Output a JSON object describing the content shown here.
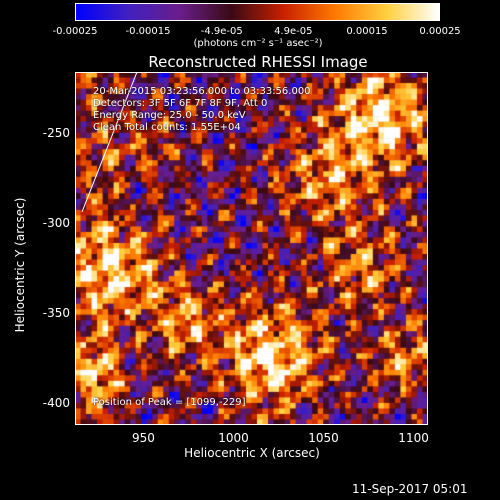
{
  "colorbar": {
    "tick_labels": [
      "-0.00025",
      "-0.00015",
      "-4.9e-05",
      "4.9e-05",
      "0.00015",
      "0.00025"
    ],
    "tick_values": [
      -0.00025,
      -0.00015,
      -4.9e-05,
      4.9e-05,
      0.00015,
      0.00025
    ],
    "range": [
      -0.00025,
      0.00025
    ],
    "units": "(photons cm⁻² s⁻¹ asec⁻²)",
    "colors": [
      "#0000ff",
      "#4020c0",
      "#6a1e8a",
      "#3a0a14",
      "#c82000",
      "#ff7a00",
      "#ffd040",
      "#ffffff"
    ]
  },
  "chart_data": {
    "type": "heatmap",
    "title": "Reconstructed RHESSI Image",
    "xlabel": "Heliocentric X (arcsec)",
    "ylabel": "Heliocentric Y (arcsec)",
    "xlim": [
      912,
      1108
    ],
    "ylim": [
      -412,
      -216
    ],
    "xticks": [
      950,
      1000,
      1050,
      1100
    ],
    "yticks": [
      -250,
      -300,
      -350,
      -400
    ],
    "xtick_labels": [
      "950",
      "1000",
      "1050",
      "1100"
    ],
    "ytick_labels": [
      "-250",
      "-300",
      "-350",
      "-400"
    ],
    "peak": [
      1099,
      -229
    ],
    "annotations": [
      "20-Mar-2015 03:23:56.000 to 03:33:56.000",
      "Detectors: 3F 5F 6F 7F 8F 9F, Att 0",
      "Energy Range: 25.0 - 50.0 keV",
      "Clean    Total counts: 1.55E+04"
    ],
    "peak_label": "Position of Peak = [1099,-229]"
  },
  "footer": "11-Sep-2017 05:01"
}
